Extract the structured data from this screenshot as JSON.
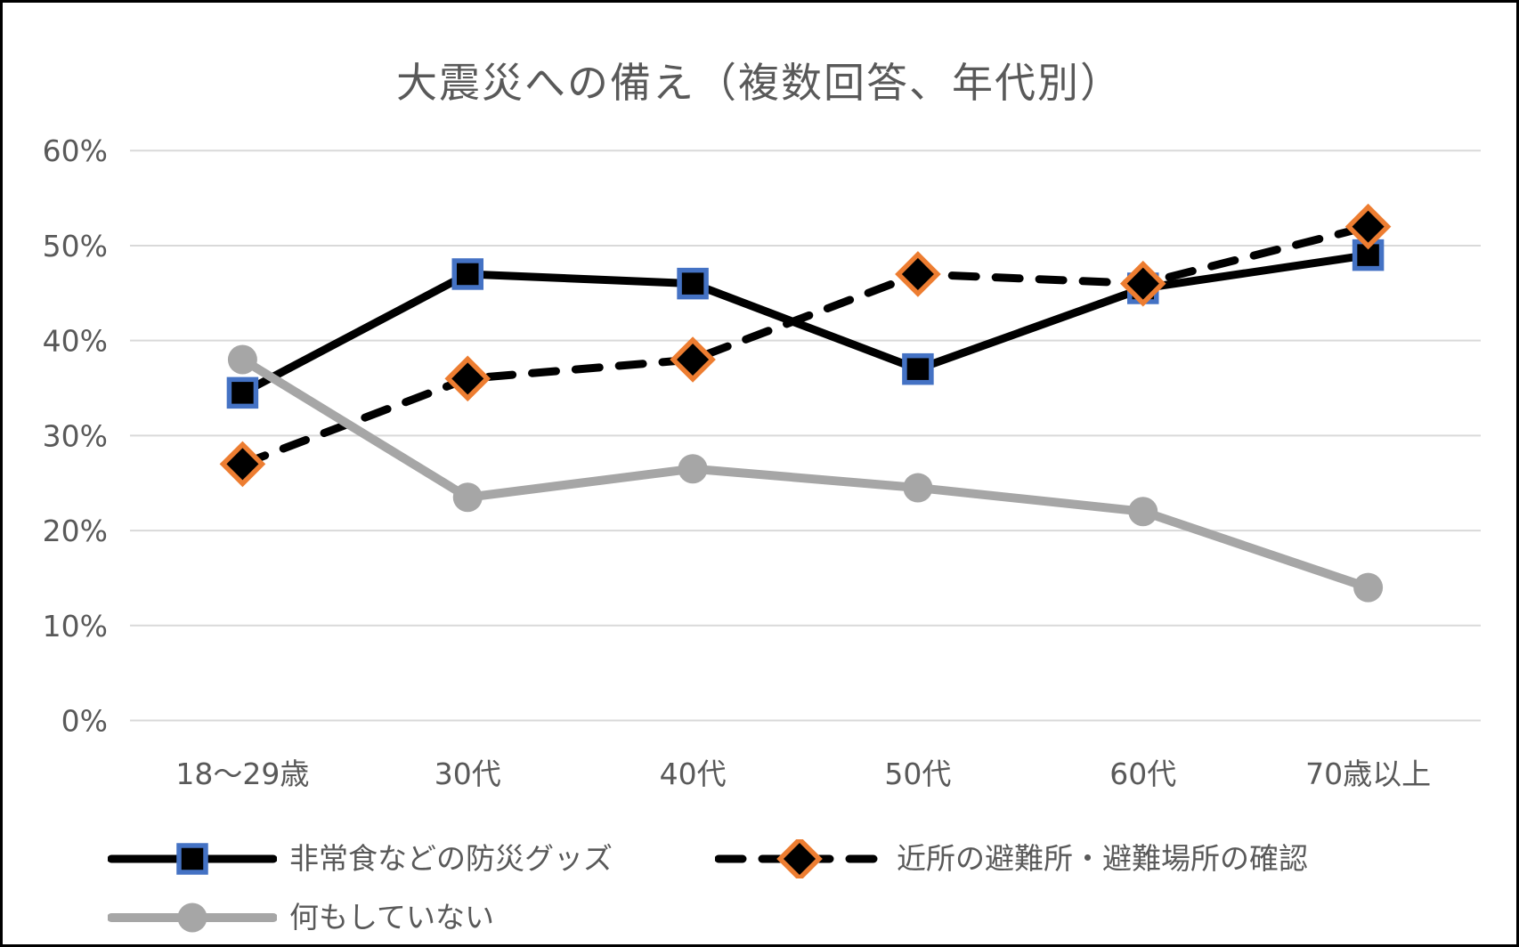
{
  "chart_data": {
    "type": "line",
    "title": "大震災への備え（複数回答、年代別）",
    "xlabel": "",
    "ylabel": "",
    "categories": [
      "18〜29歳",
      "30代",
      "40代",
      "50代",
      "60代",
      "70歳以上"
    ],
    "series": [
      {
        "name": "非常食などの防災グッズ",
        "values": [
          34.5,
          47,
          46,
          37,
          45.5,
          49
        ],
        "line_color": "#000000",
        "line_style": "solid",
        "marker": "square",
        "marker_fill": "#000000",
        "marker_border": "#4472C4"
      },
      {
        "name": "近所の避難所・避難場所の確認",
        "values": [
          27,
          36,
          38,
          47,
          46,
          52
        ],
        "line_color": "#000000",
        "line_style": "dashed",
        "marker": "diamond",
        "marker_fill": "#000000",
        "marker_border": "#ED7D31"
      },
      {
        "name": "何もしていない",
        "values": [
          38,
          23.5,
          26.5,
          24.5,
          22,
          14
        ],
        "line_color": "#A6A6A6",
        "line_style": "solid",
        "marker": "circle",
        "marker_fill": "#A6A6A6",
        "marker_border": "#A6A6A6"
      }
    ],
    "y_axis": {
      "min": 0,
      "max": 60,
      "step": 10,
      "tick_labels": [
        "0%",
        "10%",
        "20%",
        "30%",
        "40%",
        "50%",
        "60%"
      ]
    },
    "grid": true,
    "legend_position": "bottom",
    "colors": {
      "grid_line": "#D9D9D9",
      "axis_text": "#595959",
      "series1_marker_border": "#4472C4",
      "series2_marker_border": "#ED7D31",
      "series3_line": "#A6A6A6",
      "black": "#000000"
    }
  }
}
